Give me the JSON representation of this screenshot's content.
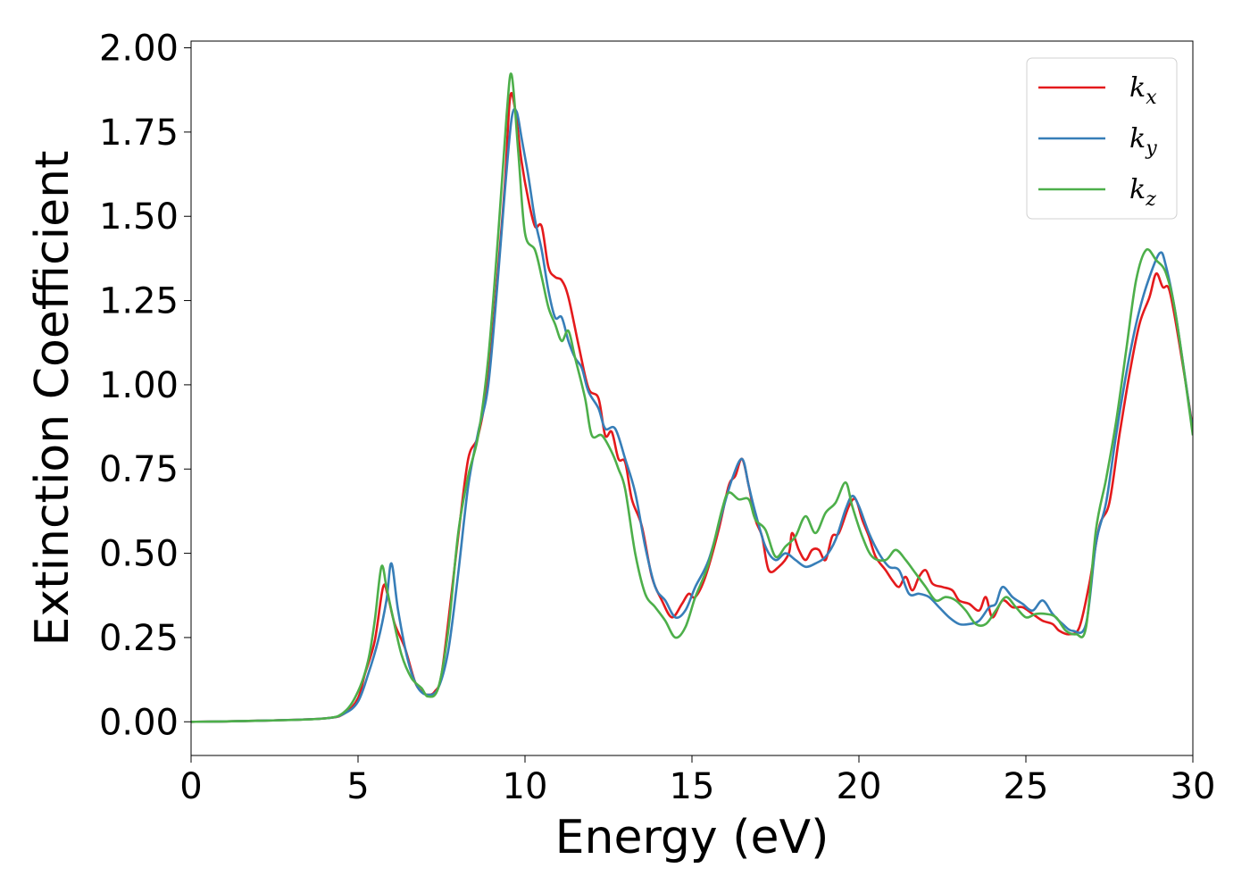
{
  "chart_data": {
    "type": "line",
    "title": "",
    "xlabel": "Energy (eV)",
    "ylabel": "Extinction Coefficient",
    "xlim": [
      0,
      30
    ],
    "ylim": [
      -0.1,
      2.02
    ],
    "xticks": [
      0,
      5,
      10,
      15,
      20,
      25,
      30
    ],
    "xtick_labels": [
      "0",
      "5",
      "10",
      "15",
      "20",
      "25",
      "30"
    ],
    "yticks": [
      0.0,
      0.25,
      0.5,
      0.75,
      1.0,
      1.25,
      1.5,
      1.75,
      2.0
    ],
    "ytick_labels": [
      "0.00",
      "0.25",
      "0.50",
      "0.75",
      "1.00",
      "1.25",
      "1.50",
      "1.75",
      "2.00"
    ],
    "grid": false,
    "legend_position": "top-right",
    "series": [
      {
        "name": "k",
        "subscript": "x",
        "color": "#e41a1c",
        "points": [
          [
            0,
            0.0
          ],
          [
            2,
            0.003
          ],
          [
            4,
            0.01
          ],
          [
            4.6,
            0.025
          ],
          [
            5.0,
            0.07
          ],
          [
            5.2,
            0.14
          ],
          [
            5.5,
            0.24
          ],
          [
            5.75,
            0.4
          ],
          [
            5.9,
            0.37
          ],
          [
            6.1,
            0.29
          ],
          [
            6.4,
            0.22
          ],
          [
            6.7,
            0.12
          ],
          [
            6.9,
            0.09
          ],
          [
            7.1,
            0.08
          ],
          [
            7.3,
            0.09
          ],
          [
            7.5,
            0.14
          ],
          [
            7.8,
            0.38
          ],
          [
            8.0,
            0.55
          ],
          [
            8.3,
            0.78
          ],
          [
            8.6,
            0.85
          ],
          [
            8.9,
            1.02
          ],
          [
            9.2,
            1.35
          ],
          [
            9.4,
            1.6
          ],
          [
            9.55,
            1.85
          ],
          [
            9.7,
            1.82
          ],
          [
            9.9,
            1.66
          ],
          [
            10.1,
            1.55
          ],
          [
            10.3,
            1.47
          ],
          [
            10.5,
            1.47
          ],
          [
            10.7,
            1.35
          ],
          [
            10.9,
            1.32
          ],
          [
            11.1,
            1.31
          ],
          [
            11.3,
            1.26
          ],
          [
            11.6,
            1.12
          ],
          [
            11.9,
            0.99
          ],
          [
            12.2,
            0.96
          ],
          [
            12.4,
            0.85
          ],
          [
            12.6,
            0.86
          ],
          [
            12.8,
            0.78
          ],
          [
            13.0,
            0.77
          ],
          [
            13.2,
            0.66
          ],
          [
            13.5,
            0.58
          ],
          [
            13.8,
            0.43
          ],
          [
            14.1,
            0.36
          ],
          [
            14.4,
            0.31
          ],
          [
            14.7,
            0.35
          ],
          [
            14.9,
            0.38
          ],
          [
            15.1,
            0.37
          ],
          [
            15.4,
            0.43
          ],
          [
            15.8,
            0.57
          ],
          [
            16.1,
            0.7
          ],
          [
            16.3,
            0.73
          ],
          [
            16.5,
            0.78
          ],
          [
            16.7,
            0.7
          ],
          [
            16.9,
            0.6
          ],
          [
            17.1,
            0.55
          ],
          [
            17.3,
            0.45
          ],
          [
            17.6,
            0.46
          ],
          [
            17.9,
            0.5
          ],
          [
            18.0,
            0.56
          ],
          [
            18.2,
            0.51
          ],
          [
            18.4,
            0.48
          ],
          [
            18.6,
            0.51
          ],
          [
            18.8,
            0.51
          ],
          [
            19.0,
            0.48
          ],
          [
            19.2,
            0.55
          ],
          [
            19.4,
            0.56
          ],
          [
            19.7,
            0.64
          ],
          [
            19.9,
            0.66
          ],
          [
            20.1,
            0.6
          ],
          [
            20.3,
            0.55
          ],
          [
            20.5,
            0.49
          ],
          [
            20.8,
            0.45
          ],
          [
            21.0,
            0.42
          ],
          [
            21.2,
            0.4
          ],
          [
            21.4,
            0.43
          ],
          [
            21.6,
            0.39
          ],
          [
            21.8,
            0.43
          ],
          [
            22.0,
            0.45
          ],
          [
            22.2,
            0.41
          ],
          [
            22.5,
            0.4
          ],
          [
            22.8,
            0.39
          ],
          [
            23.0,
            0.36
          ],
          [
            23.3,
            0.35
          ],
          [
            23.6,
            0.33
          ],
          [
            23.8,
            0.37
          ],
          [
            24.0,
            0.31
          ],
          [
            24.3,
            0.36
          ],
          [
            24.6,
            0.34
          ],
          [
            24.9,
            0.34
          ],
          [
            25.2,
            0.32
          ],
          [
            25.5,
            0.3
          ],
          [
            25.8,
            0.29
          ],
          [
            26.0,
            0.27
          ],
          [
            26.3,
            0.26
          ],
          [
            26.6,
            0.28
          ],
          [
            26.9,
            0.41
          ],
          [
            27.2,
            0.58
          ],
          [
            27.5,
            0.65
          ],
          [
            27.8,
            0.85
          ],
          [
            28.1,
            1.03
          ],
          [
            28.4,
            1.18
          ],
          [
            28.7,
            1.26
          ],
          [
            28.9,
            1.33
          ],
          [
            29.1,
            1.29
          ],
          [
            29.3,
            1.28
          ],
          [
            29.6,
            1.12
          ],
          [
            30.0,
            0.87
          ]
        ]
      },
      {
        "name": "k",
        "subscript": "y",
        "color": "#377eb8",
        "points": [
          [
            0,
            0.0
          ],
          [
            2,
            0.003
          ],
          [
            4,
            0.01
          ],
          [
            4.6,
            0.025
          ],
          [
            5.0,
            0.06
          ],
          [
            5.3,
            0.14
          ],
          [
            5.6,
            0.24
          ],
          [
            5.85,
            0.36
          ],
          [
            6.0,
            0.47
          ],
          [
            6.2,
            0.33
          ],
          [
            6.5,
            0.18
          ],
          [
            6.8,
            0.1
          ],
          [
            7.1,
            0.08
          ],
          [
            7.4,
            0.1
          ],
          [
            7.7,
            0.21
          ],
          [
            8.0,
            0.44
          ],
          [
            8.3,
            0.7
          ],
          [
            8.6,
            0.86
          ],
          [
            8.9,
            1.0
          ],
          [
            9.2,
            1.33
          ],
          [
            9.4,
            1.58
          ],
          [
            9.6,
            1.79
          ],
          [
            9.75,
            1.81
          ],
          [
            9.9,
            1.73
          ],
          [
            10.1,
            1.62
          ],
          [
            10.3,
            1.49
          ],
          [
            10.5,
            1.4
          ],
          [
            10.7,
            1.28
          ],
          [
            10.9,
            1.2
          ],
          [
            11.1,
            1.2
          ],
          [
            11.3,
            1.13
          ],
          [
            11.5,
            1.08
          ],
          [
            11.7,
            1.05
          ],
          [
            11.9,
            0.98
          ],
          [
            12.2,
            0.93
          ],
          [
            12.4,
            0.87
          ],
          [
            12.7,
            0.87
          ],
          [
            13.0,
            0.78
          ],
          [
            13.3,
            0.68
          ],
          [
            13.6,
            0.52
          ],
          [
            13.9,
            0.4
          ],
          [
            14.2,
            0.36
          ],
          [
            14.5,
            0.31
          ],
          [
            14.8,
            0.33
          ],
          [
            15.1,
            0.4
          ],
          [
            15.5,
            0.48
          ],
          [
            15.9,
            0.62
          ],
          [
            16.2,
            0.72
          ],
          [
            16.5,
            0.78
          ],
          [
            16.7,
            0.7
          ],
          [
            16.9,
            0.62
          ],
          [
            17.2,
            0.52
          ],
          [
            17.5,
            0.48
          ],
          [
            17.8,
            0.5
          ],
          [
            18.1,
            0.48
          ],
          [
            18.4,
            0.46
          ],
          [
            18.7,
            0.47
          ],
          [
            19.0,
            0.49
          ],
          [
            19.3,
            0.54
          ],
          [
            19.6,
            0.63
          ],
          [
            19.8,
            0.67
          ],
          [
            20.0,
            0.64
          ],
          [
            20.3,
            0.56
          ],
          [
            20.6,
            0.5
          ],
          [
            20.9,
            0.46
          ],
          [
            21.2,
            0.45
          ],
          [
            21.5,
            0.38
          ],
          [
            21.8,
            0.38
          ],
          [
            22.1,
            0.37
          ],
          [
            22.4,
            0.34
          ],
          [
            22.7,
            0.31
          ],
          [
            23.0,
            0.29
          ],
          [
            23.3,
            0.29
          ],
          [
            23.6,
            0.3
          ],
          [
            23.9,
            0.34
          ],
          [
            24.1,
            0.35
          ],
          [
            24.3,
            0.4
          ],
          [
            24.6,
            0.37
          ],
          [
            24.9,
            0.35
          ],
          [
            25.2,
            0.33
          ],
          [
            25.5,
            0.36
          ],
          [
            25.8,
            0.32
          ],
          [
            26.1,
            0.29
          ],
          [
            26.4,
            0.27
          ],
          [
            26.8,
            0.29
          ],
          [
            27.1,
            0.53
          ],
          [
            27.4,
            0.65
          ],
          [
            27.7,
            0.85
          ],
          [
            28.0,
            1.03
          ],
          [
            28.3,
            1.18
          ],
          [
            28.6,
            1.29
          ],
          [
            29.0,
            1.39
          ],
          [
            29.2,
            1.35
          ],
          [
            29.5,
            1.2
          ],
          [
            30.0,
            0.86
          ]
        ]
      },
      {
        "name": "k",
        "subscript": "z",
        "color": "#4daf4a",
        "points": [
          [
            0,
            0.0
          ],
          [
            2,
            0.003
          ],
          [
            4,
            0.01
          ],
          [
            4.6,
            0.03
          ],
          [
            5.0,
            0.09
          ],
          [
            5.3,
            0.18
          ],
          [
            5.5,
            0.3
          ],
          [
            5.7,
            0.46
          ],
          [
            5.85,
            0.4
          ],
          [
            6.0,
            0.33
          ],
          [
            6.3,
            0.2
          ],
          [
            6.6,
            0.13
          ],
          [
            6.9,
            0.1
          ],
          [
            7.1,
            0.075
          ],
          [
            7.4,
            0.1
          ],
          [
            7.7,
            0.27
          ],
          [
            8.0,
            0.56
          ],
          [
            8.3,
            0.73
          ],
          [
            8.6,
            0.85
          ],
          [
            8.9,
            1.08
          ],
          [
            9.2,
            1.45
          ],
          [
            9.45,
            1.8
          ],
          [
            9.6,
            1.92
          ],
          [
            9.8,
            1.69
          ],
          [
            10.0,
            1.45
          ],
          [
            10.3,
            1.4
          ],
          [
            10.5,
            1.32
          ],
          [
            10.7,
            1.23
          ],
          [
            10.9,
            1.18
          ],
          [
            11.1,
            1.13
          ],
          [
            11.3,
            1.16
          ],
          [
            11.5,
            1.08
          ],
          [
            11.8,
            0.96
          ],
          [
            12.0,
            0.85
          ],
          [
            12.3,
            0.85
          ],
          [
            12.6,
            0.8
          ],
          [
            12.8,
            0.75
          ],
          [
            13.0,
            0.69
          ],
          [
            13.3,
            0.5
          ],
          [
            13.6,
            0.38
          ],
          [
            13.9,
            0.34
          ],
          [
            14.2,
            0.3
          ],
          [
            14.5,
            0.25
          ],
          [
            14.8,
            0.28
          ],
          [
            15.1,
            0.37
          ],
          [
            15.5,
            0.47
          ],
          [
            15.9,
            0.63
          ],
          [
            16.1,
            0.68
          ],
          [
            16.4,
            0.66
          ],
          [
            16.7,
            0.66
          ],
          [
            16.9,
            0.6
          ],
          [
            17.2,
            0.57
          ],
          [
            17.5,
            0.49
          ],
          [
            17.8,
            0.52
          ],
          [
            18.1,
            0.55
          ],
          [
            18.4,
            0.61
          ],
          [
            18.7,
            0.56
          ],
          [
            19.0,
            0.62
          ],
          [
            19.3,
            0.65
          ],
          [
            19.6,
            0.71
          ],
          [
            19.8,
            0.64
          ],
          [
            20.1,
            0.55
          ],
          [
            20.4,
            0.49
          ],
          [
            20.8,
            0.48
          ],
          [
            21.1,
            0.51
          ],
          [
            21.4,
            0.48
          ],
          [
            21.7,
            0.44
          ],
          [
            22.0,
            0.4
          ],
          [
            22.3,
            0.36
          ],
          [
            22.6,
            0.37
          ],
          [
            22.9,
            0.36
          ],
          [
            23.2,
            0.33
          ],
          [
            23.5,
            0.29
          ],
          [
            23.8,
            0.29
          ],
          [
            24.1,
            0.33
          ],
          [
            24.4,
            0.37
          ],
          [
            24.7,
            0.34
          ],
          [
            25.0,
            0.31
          ],
          [
            25.3,
            0.32
          ],
          [
            25.6,
            0.32
          ],
          [
            25.9,
            0.31
          ],
          [
            26.2,
            0.27
          ],
          [
            26.5,
            0.26
          ],
          [
            26.8,
            0.28
          ],
          [
            27.1,
            0.57
          ],
          [
            27.4,
            0.72
          ],
          [
            27.7,
            0.89
          ],
          [
            28.0,
            1.1
          ],
          [
            28.3,
            1.31
          ],
          [
            28.6,
            1.4
          ],
          [
            28.9,
            1.37
          ],
          [
            29.2,
            1.33
          ],
          [
            29.5,
            1.2
          ],
          [
            30.0,
            0.85
          ]
        ]
      }
    ]
  }
}
